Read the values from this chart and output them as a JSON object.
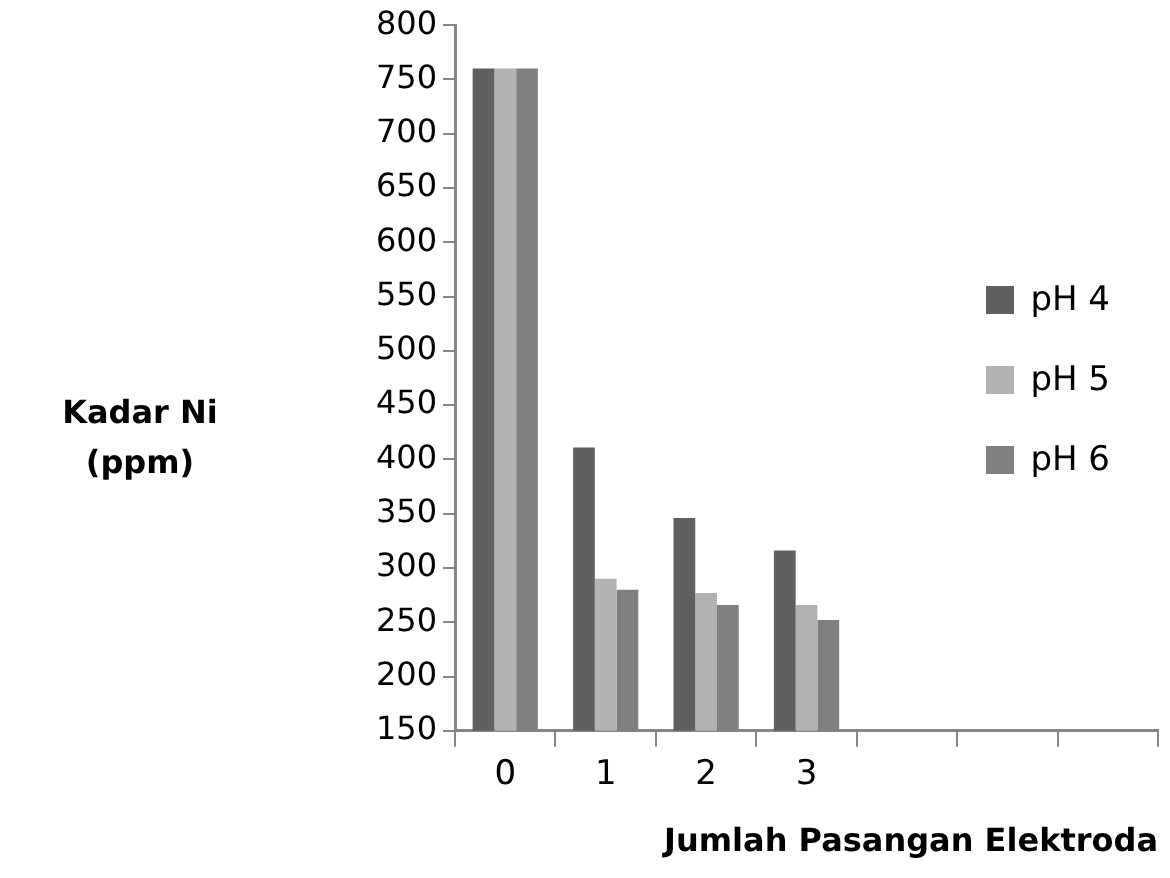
{
  "chart_data": {
    "type": "bar",
    "xlabel": "Jumlah Pasangan Elektroda",
    "ylabel": "Kadar Ni\n(ppm)",
    "categories": [
      "0",
      "1",
      "2",
      "3",
      null,
      null,
      null
    ],
    "series": [
      {
        "name": "pH 4",
        "color": "#606060",
        "values": [
          760,
          411,
          346,
          316,
          null,
          null,
          null
        ]
      },
      {
        "name": "pH 5",
        "color": "#b2b2b2",
        "values": [
          760,
          290,
          277,
          266,
          null,
          null,
          null
        ]
      },
      {
        "name": "pH 6",
        "color": "#808080",
        "values": [
          760,
          280,
          266,
          252,
          null,
          null,
          null
        ]
      }
    ],
    "ylim": [
      150,
      800
    ],
    "yticks": [
      150,
      200,
      250,
      300,
      350,
      400,
      450,
      500,
      550,
      600,
      650,
      700,
      750,
      800
    ],
    "grid": false,
    "legend": "right"
  }
}
